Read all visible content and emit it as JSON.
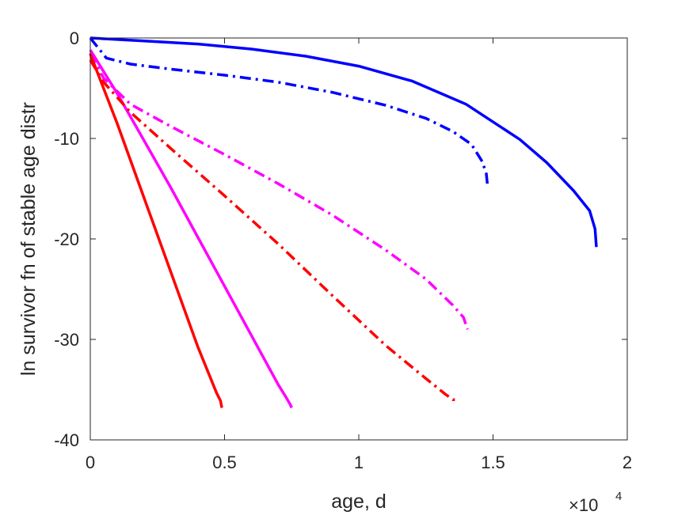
{
  "chart_data": {
    "type": "line",
    "title": "",
    "xlabel": "age, d",
    "ylabel": "ln survivor fn of stable age distr",
    "x_exponent_label": {
      "base": "×10",
      "exponent": "4"
    },
    "xlim": [
      0,
      20000
    ],
    "ylim": [
      -40,
      0
    ],
    "xticks": [
      0,
      5000,
      10000,
      15000,
      20000
    ],
    "xtick_labels": [
      "0",
      "0.5",
      "1",
      "1.5",
      "2"
    ],
    "yticks": [
      0,
      -10,
      -20,
      -30,
      -40
    ],
    "ytick_labels": [
      "0",
      "-10",
      "-20",
      "-30",
      "-40"
    ],
    "grid": false,
    "box": true,
    "series": [
      {
        "color": "#0000ff",
        "style": "solid",
        "x": [
          0,
          2000,
          4000,
          6000,
          8000,
          10000,
          12000,
          14000,
          16000,
          17000,
          18000,
          18600,
          18800,
          18850
        ],
        "y": [
          0,
          -0.3,
          -0.6,
          -1.1,
          -1.8,
          -2.8,
          -4.3,
          -6.6,
          -10.1,
          -12.4,
          -15.2,
          -17.2,
          -19.0,
          -20.8
        ]
      },
      {
        "color": "#0000ff",
        "style": "dashdot",
        "x": [
          0,
          600,
          1500,
          3000,
          5000,
          7000,
          9000,
          11000,
          12500,
          13500,
          14200,
          14600,
          14750,
          14800
        ],
        "y": [
          0,
          -2.0,
          -2.6,
          -3.1,
          -3.7,
          -4.4,
          -5.4,
          -6.7,
          -8.0,
          -9.3,
          -10.6,
          -12.3,
          -13.5,
          -14.8
        ]
      },
      {
        "color": "#ff00ff",
        "style": "solid",
        "x": [
          0,
          1000,
          2000,
          3000,
          4000,
          5000,
          6000,
          7000,
          7300,
          7450,
          7500
        ],
        "y": [
          -1.2,
          -5.5,
          -10.2,
          -14.9,
          -19.8,
          -24.7,
          -29.6,
          -34.5,
          -35.8,
          -36.5,
          -36.8
        ]
      },
      {
        "color": "#ff00ff",
        "style": "dashdot",
        "x": [
          0,
          500,
          1500,
          3000,
          5000,
          7000,
          9000,
          11000,
          12500,
          13500,
          13900,
          14050
        ],
        "y": [
          -1.5,
          -4.0,
          -6.6,
          -8.8,
          -11.6,
          -14.5,
          -17.6,
          -21.1,
          -24.0,
          -26.6,
          -27.8,
          -29.0
        ]
      },
      {
        "color": "#ff0000",
        "style": "solid",
        "x": [
          0,
          1000,
          2000,
          3000,
          4000,
          4700,
          4850,
          4900
        ],
        "y": [
          -1.6,
          -8.5,
          -15.9,
          -23.3,
          -30.7,
          -35.3,
          -36.1,
          -36.8
        ]
      },
      {
        "color": "#ff0000",
        "style": "dashdot",
        "x": [
          0,
          500,
          1500,
          3000,
          5000,
          7000,
          9000,
          11000,
          12500,
          13200,
          13500,
          13700
        ],
        "y": [
          -2.2,
          -4.4,
          -7.4,
          -11.0,
          -15.7,
          -20.5,
          -25.6,
          -30.6,
          -33.9,
          -35.4,
          -36.0,
          -36.0
        ]
      }
    ]
  }
}
